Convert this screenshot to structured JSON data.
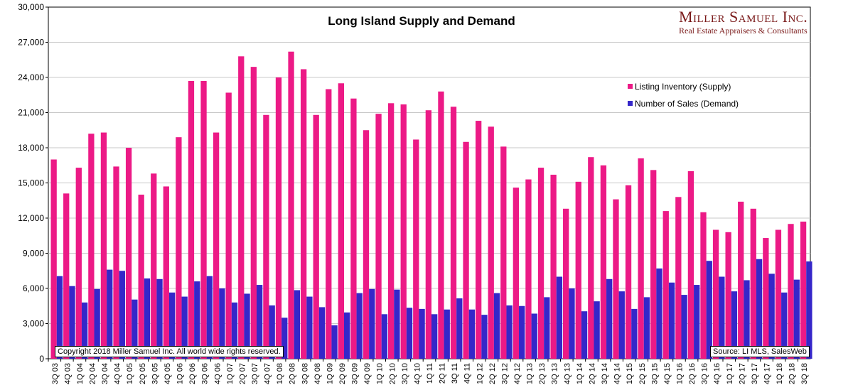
{
  "chart_data": {
    "type": "bar",
    "title": "Long Island Supply and Demand",
    "xlabel": "",
    "ylabel": "",
    "ylim": [
      0,
      30000
    ],
    "yticks": [
      "0",
      "3,000",
      "6,000",
      "9,000",
      "12,000",
      "15,000",
      "18,000",
      "21,000",
      "24,000",
      "27,000",
      "30,000"
    ],
    "grid": true,
    "legend_position": "top-right",
    "categories": [
      "3Q 03",
      "4Q 03",
      "1Q 04",
      "2Q 04",
      "3Q 04",
      "4Q 04",
      "1Q 05",
      "2Q 05",
      "3Q 05",
      "4Q 05",
      "1Q 06",
      "2Q 06",
      "3Q 06",
      "4Q 06",
      "1Q 07",
      "2Q 07",
      "3Q 07",
      "4Q 07",
      "1Q 08",
      "2Q 08",
      "3Q 08",
      "4Q 08",
      "1Q 09",
      "2Q 09",
      "3Q 09",
      "4Q 09",
      "1Q 10",
      "2Q 10",
      "3Q 10",
      "4Q 10",
      "1Q 11",
      "2Q 11",
      "3Q 11",
      "4Q 11",
      "1Q 12",
      "2Q 12",
      "3Q 12",
      "4Q 12",
      "1Q 13",
      "2Q 13",
      "3Q 13",
      "4Q 13",
      "1Q 14",
      "2Q 14",
      "3Q 14",
      "4Q 14",
      "1Q 15",
      "2Q 15",
      "3Q 15",
      "4Q 15",
      "1Q 16",
      "2Q 16",
      "3Q 16",
      "4Q 16",
      "1Q 17",
      "2Q 17",
      "3Q 17",
      "4Q 17",
      "1Q 18",
      "2Q 18",
      "3Q 18"
    ],
    "series": [
      {
        "name": "Listing Inventory (Supply)",
        "color": "#ec1a86",
        "values": [
          17000,
          14100,
          16300,
          19200,
          19300,
          16400,
          18000,
          14000,
          15800,
          14700,
          18900,
          23700,
          23700,
          19300,
          22700,
          25800,
          24900,
          20800,
          24000,
          26200,
          24700,
          20800,
          23000,
          23500,
          22200,
          19500,
          20900,
          21800,
          21700,
          18700,
          21200,
          22800,
          21500,
          18500,
          20300,
          19800,
          18100,
          14600,
          15300,
          16300,
          15700,
          12800,
          15100,
          17200,
          16500,
          13600,
          14800,
          17100,
          16100,
          12600,
          13800,
          16000,
          12500,
          11000,
          10800,
          13400,
          12800,
          10300,
          11000,
          11500,
          11700
        ]
      },
      {
        "name": "Number of Sales (Demand)",
        "color": "#3527c9",
        "values": [
          7050,
          6200,
          4800,
          5950,
          7600,
          7500,
          5050,
          6850,
          6800,
          5650,
          5300,
          6600,
          7050,
          6000,
          4800,
          5550,
          6300,
          4550,
          3500,
          5850,
          5300,
          4400,
          2850,
          3950,
          5600,
          5950,
          3800,
          5900,
          4350,
          4250,
          3800,
          4200,
          5150,
          4200,
          3750,
          5600,
          4550,
          4500,
          3850,
          5250,
          7000,
          6000,
          4050,
          4900,
          6800,
          5750,
          4250,
          5250,
          7700,
          6500,
          5450,
          6300,
          8350,
          7000,
          5750,
          6700,
          8500,
          7250,
          5650,
          6750,
          8300
        ]
      }
    ]
  },
  "branding": {
    "name": "Miller Samuel Inc.",
    "subtitle": "Real Estate Appraisers & Consultants"
  },
  "notes": {
    "copyright": "Copyright 2018 Miller Samuel Inc.  All world wide rights reserved.",
    "source": "Source: LI MLS, SalesWeb"
  }
}
